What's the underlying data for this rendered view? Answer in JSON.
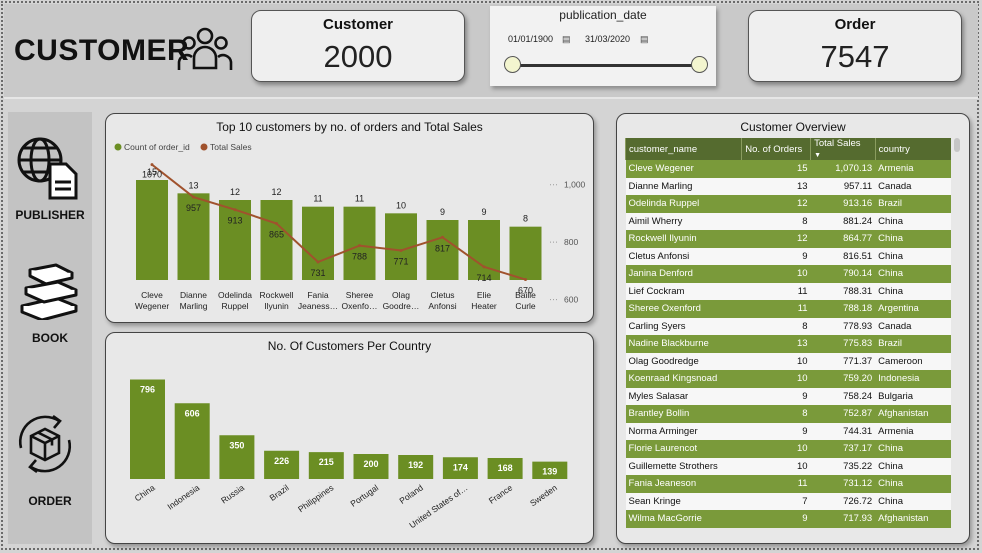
{
  "header": {
    "title": "CUSTOMER",
    "customer_card": {
      "label": "Customer",
      "value": "2000"
    },
    "order_card": {
      "label": "Order",
      "value": "7547"
    },
    "slicer": {
      "label": "publication_date",
      "start": "01/01/1900",
      "end": "31/03/2020"
    }
  },
  "sidebar": {
    "items": [
      {
        "label": "PUBLISHER",
        "icon": "publisher-icon"
      },
      {
        "label": "BOOK",
        "icon": "book-icon"
      },
      {
        "label": "ORDER",
        "icon": "order-icon"
      }
    ]
  },
  "colors": {
    "bar": "#6b8e23",
    "line": "#a0522d",
    "header_green": "#556b2f",
    "row_green": "#7a9a3a"
  },
  "chart_data": [
    {
      "type": "bar+line",
      "title": "Top 10 customers by no. of orders and Total Sales",
      "legend": [
        "Count of order_id",
        "Total Sales"
      ],
      "legend_position": "top-left",
      "categories": [
        "Cleve Wegener",
        "Dianne Marling",
        "Odelinda Ruppel",
        "Rockwell Ilyunin",
        "Fania Jeaness…",
        "Sheree Oxenfo…",
        "Olag Goodre…",
        "Cletus Anfonsi",
        "Elie Heater",
        "Bailie Curle"
      ],
      "category_lines": [
        [
          "Cleve",
          "Wegener"
        ],
        [
          "Dianne",
          "Marling"
        ],
        [
          "Odelinda",
          "Ruppel"
        ],
        [
          "Rockwell",
          "Ilyunin"
        ],
        [
          "Fania",
          "Jeaness…"
        ],
        [
          "Sheree",
          "Oxenfo…"
        ],
        [
          "Olag",
          "Goodre…"
        ],
        [
          "Cletus",
          "Anfonsi"
        ],
        [
          "Elie",
          "Heater"
        ],
        [
          "Bailie",
          "Curle"
        ]
      ],
      "series": [
        {
          "name": "Count of order_id",
          "type": "bar",
          "values": [
            15,
            13,
            12,
            12,
            11,
            11,
            10,
            9,
            9,
            8
          ],
          "labels": [
            "15",
            "13",
            "12",
            "12",
            "11",
            "11",
            "10",
            "9",
            "9",
            "8"
          ]
        },
        {
          "name": "Total Sales",
          "type": "line",
          "values": [
            1070,
            957,
            913,
            865,
            731,
            788,
            771,
            817,
            714,
            670
          ],
          "labels": [
            "1070",
            "957",
            "913",
            "865",
            "731",
            "788",
            "771",
            "817",
            "714",
            "670"
          ]
        }
      ],
      "y2_ticks": [
        "1,000",
        "800",
        "600"
      ],
      "y2_tick_values": [
        1000,
        800,
        600
      ],
      "y2lim": [
        550,
        1100
      ],
      "ylim": [
        0,
        15
      ]
    },
    {
      "type": "bar",
      "title": "No. Of Customers Per Country",
      "categories": [
        "China",
        "Indonesia",
        "Russia",
        "Brazil",
        "Philippines",
        "Portugal",
        "Poland",
        "United States of…",
        "France",
        "Sweden"
      ],
      "values": [
        796,
        606,
        350,
        226,
        215,
        200,
        192,
        174,
        168,
        139
      ],
      "labels": [
        "796",
        "606",
        "350",
        "226",
        "215",
        "200",
        "192",
        "174",
        "168",
        "139"
      ],
      "ylim": [
        0,
        800
      ]
    }
  ],
  "overview": {
    "title": "Customer Overview",
    "columns": [
      "customer_name",
      "No. of Orders",
      "Total Sales",
      "country"
    ],
    "rows": [
      [
        "Cleve Wegener",
        "15",
        "1,070.13",
        "Armenia"
      ],
      [
        "Dianne Marling",
        "13",
        "957.11",
        "Canada"
      ],
      [
        "Odelinda Ruppel",
        "12",
        "913.16",
        "Brazil"
      ],
      [
        "Aimil Wherry",
        "8",
        "881.24",
        "China"
      ],
      [
        "Rockwell Ilyunin",
        "12",
        "864.77",
        "China"
      ],
      [
        "Cletus Anfonsi",
        "9",
        "816.51",
        "China"
      ],
      [
        "Janina Denford",
        "10",
        "790.14",
        "China"
      ],
      [
        "Lief Cockram",
        "11",
        "788.31",
        "China"
      ],
      [
        "Sheree Oxenford",
        "11",
        "788.18",
        "Argentina"
      ],
      [
        "Carling Syers",
        "8",
        "778.93",
        "Canada"
      ],
      [
        "Nadine Blackburne",
        "13",
        "775.83",
        "Brazil"
      ],
      [
        "Olag Goodredge",
        "10",
        "771.37",
        "Cameroon"
      ],
      [
        "Koenraad Kingsnoad",
        "10",
        "759.20",
        "Indonesia"
      ],
      [
        "Myles Salasar",
        "9",
        "758.24",
        "Bulgaria"
      ],
      [
        "Brantley Bollin",
        "8",
        "752.87",
        "Afghanistan"
      ],
      [
        "Norma Arminger",
        "9",
        "744.31",
        "Armenia"
      ],
      [
        "Florie Laurencot",
        "10",
        "737.17",
        "China"
      ],
      [
        "Guillemette Strothers",
        "10",
        "735.22",
        "China"
      ],
      [
        "Fania Jeaneson",
        "11",
        "731.12",
        "China"
      ],
      [
        "Sean Kringe",
        "7",
        "726.72",
        "China"
      ],
      [
        "Wilma MacGorrie",
        "9",
        "717.93",
        "Afghanistan"
      ]
    ]
  }
}
